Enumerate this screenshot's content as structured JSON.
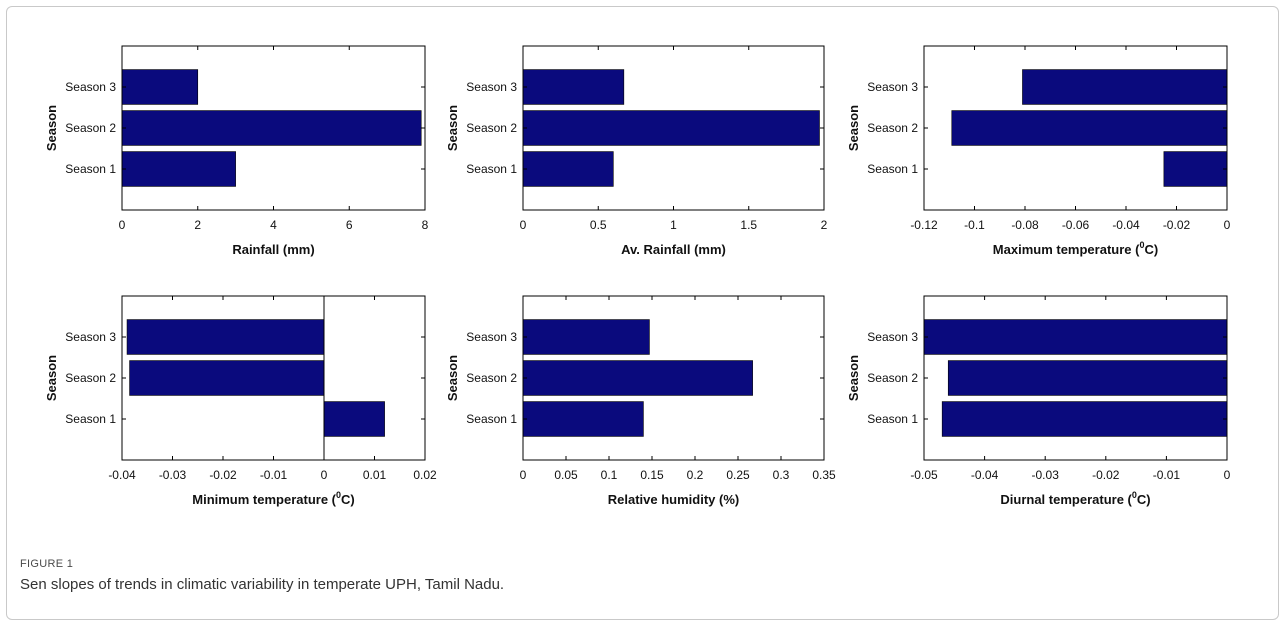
{
  "figure": {
    "label": "FIGURE 1",
    "caption": "Sen slopes of trends in climatic variability in temperate UPH, Tamil Nadu."
  },
  "colors": {
    "bar": "#0a0a7d",
    "axis": "#000000"
  },
  "chart_data": [
    {
      "type": "bar",
      "orientation": "horizontal",
      "ylabel": "Season",
      "xlabel": "Rainfall (mm)",
      "categories": [
        "Season 1",
        "Season 2",
        "Season 3"
      ],
      "values": [
        3,
        7.9,
        2
      ],
      "xlim": [
        0,
        8
      ],
      "xticks": [
        0,
        2,
        4,
        6,
        8
      ],
      "xtick_labels": [
        "0",
        "2",
        "4",
        "6",
        "8"
      ]
    },
    {
      "type": "bar",
      "orientation": "horizontal",
      "ylabel": "Season",
      "xlabel": "Av. Rainfall (mm)",
      "categories": [
        "Season 1",
        "Season 2",
        "Season 3"
      ],
      "values": [
        0.6,
        1.97,
        0.67
      ],
      "xlim": [
        0,
        2
      ],
      "xticks": [
        0,
        0.5,
        1,
        1.5,
        2
      ],
      "xtick_labels": [
        "0",
        "0.5",
        "1",
        "1.5",
        "2"
      ]
    },
    {
      "type": "bar",
      "orientation": "horizontal",
      "ylabel": "Season",
      "xlabel": "Maximum temperature (°C)",
      "xlabel_parts": [
        "Maximum temperature (",
        "0",
        "C)"
      ],
      "categories": [
        "Season 1",
        "Season 2",
        "Season 3"
      ],
      "values": [
        -0.025,
        -0.109,
        -0.081
      ],
      "xlim": [
        -0.12,
        0
      ],
      "xticks": [
        -0.12,
        -0.1,
        -0.08,
        -0.06,
        -0.04,
        -0.02,
        0
      ],
      "xtick_labels": [
        "-0.12",
        "-0.1",
        "-0.08",
        "-0.06",
        "-0.04",
        "-0.02",
        "0"
      ]
    },
    {
      "type": "bar",
      "orientation": "horizontal",
      "ylabel": "Season",
      "xlabel": "Minimum temperature (°C)",
      "xlabel_parts": [
        "Minimum temperature (",
        "0",
        "C)"
      ],
      "categories": [
        "Season 1",
        "Season 2",
        "Season 3"
      ],
      "values": [
        0.012,
        -0.0385,
        -0.039
      ],
      "xlim": [
        -0.04,
        0.02
      ],
      "xticks": [
        -0.04,
        -0.03,
        -0.02,
        -0.01,
        0,
        0.01,
        0.02
      ],
      "xtick_labels": [
        "-0.04",
        "-0.03",
        "-0.02",
        "-0.01",
        "0",
        "0.01",
        "0.02"
      ]
    },
    {
      "type": "bar",
      "orientation": "horizontal",
      "ylabel": "Season",
      "xlabel": "Relative humidity (%)",
      "categories": [
        "Season 1",
        "Season 2",
        "Season 3"
      ],
      "values": [
        0.14,
        0.267,
        0.147
      ],
      "xlim": [
        0,
        0.35
      ],
      "xticks": [
        0,
        0.05,
        0.1,
        0.15,
        0.2,
        0.25,
        0.3,
        0.35
      ],
      "xtick_labels": [
        "0",
        "0.05",
        "0.1",
        "0.15",
        "0.2",
        "0.25",
        "0.3",
        "0.35"
      ]
    },
    {
      "type": "bar",
      "orientation": "horizontal",
      "ylabel": "Season",
      "xlabel": "Diurnal temperature (°C)",
      "xlabel_parts": [
        "Diurnal temperature (",
        "0",
        "C)"
      ],
      "categories": [
        "Season 1",
        "Season 2",
        "Season 3"
      ],
      "values": [
        -0.047,
        -0.046,
        -0.05
      ],
      "xlim": [
        -0.05,
        0
      ],
      "xticks": [
        -0.05,
        -0.04,
        -0.03,
        -0.02,
        -0.01,
        0
      ],
      "xtick_labels": [
        "-0.05",
        "-0.04",
        "-0.03",
        "-0.02",
        "-0.01",
        "0"
      ]
    }
  ]
}
